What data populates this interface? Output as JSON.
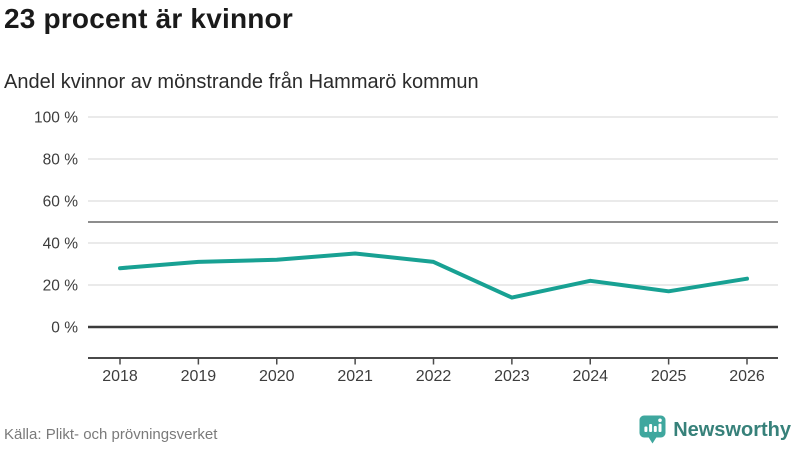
{
  "title": "23 procent är kvinnor",
  "subtitle": "Andel kvinnor av mönstrande från Hammarö kommun",
  "footer": {
    "source": "Källa: Plikt- och prövningsverket",
    "brand": "Newsworthy"
  },
  "colors": {
    "line": "#18a193",
    "grid": "#e4e4e4",
    "reference_line": "#8d8d8d",
    "zero_line": "#3b3b3b",
    "axis": "#4a4a4a",
    "tick_label": "#3d3d3d",
    "brand_teal": "#3fa79e",
    "brand_text": "#37817a"
  },
  "chart_data": {
    "type": "line",
    "x": [
      2018,
      2019,
      2020,
      2021,
      2022,
      2023,
      2024,
      2025,
      2026
    ],
    "series": [
      {
        "name": "Andel kvinnor av mönstrande",
        "values": [
          28,
          31,
          32,
          35,
          31,
          14,
          22,
          17,
          23
        ]
      }
    ],
    "title": "23 procent är kvinnor",
    "subtitle": "Andel kvinnor av mönstrande från Hammarö kommun",
    "xlabel": "",
    "ylabel": "",
    "unit": "%",
    "ylim": [
      0,
      100
    ],
    "yticks": [
      0,
      20,
      40,
      60,
      80,
      100
    ],
    "ytick_suffix": " %",
    "reference_line": 50,
    "grid": true,
    "legend": false
  }
}
